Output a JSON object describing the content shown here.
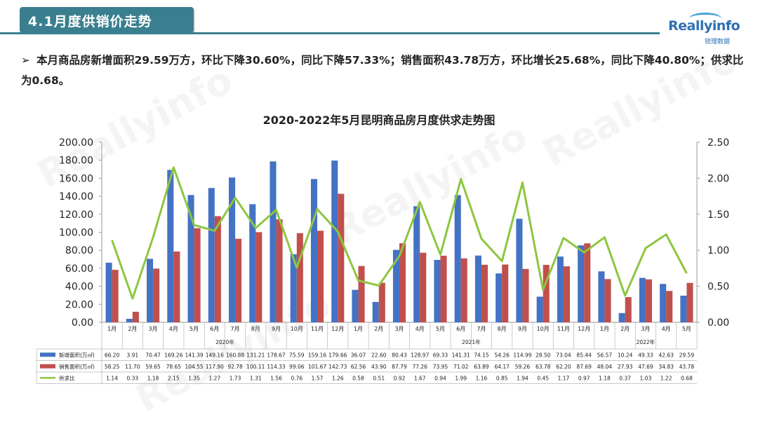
{
  "header": {
    "section_title": "4.1月度供销价走势",
    "logo_text": "Reallyinfo",
    "logo_sub": "锐理数据"
  },
  "summary": {
    "bullet_icon": "arrow-right-icon",
    "text": "本月商品房新增面积29.59万方，环比下降30.60%，同比下降57.33%；销售面积43.78万方，环比增长25.68%，同比下降40.80%；供求比为0.68。"
  },
  "colors": {
    "supply": "#4472c4",
    "sales": "#c0504d",
    "ratio": "#8dc63f",
    "accent": "#3a7f8f"
  },
  "chart_data": {
    "type": "bar",
    "title": "2020-2022年5月昆明商品房月度供求走势图",
    "categories": [
      "1月",
      "2月",
      "3月",
      "4月",
      "5月",
      "6月",
      "7月",
      "8月",
      "9月",
      "10月",
      "11月",
      "12月",
      "1月",
      "2月",
      "3月",
      "4月",
      "5月",
      "6月",
      "7月",
      "8月",
      "9月",
      "10月",
      "11月",
      "12月",
      "1月",
      "2月",
      "3月",
      "4月",
      "5月"
    ],
    "year_groups": [
      {
        "label": "2020年",
        "count": 12
      },
      {
        "label": "2021年",
        "count": 12
      },
      {
        "label": "2022年",
        "count": 5
      }
    ],
    "series": [
      {
        "name": "新增面积(万㎡)",
        "type": "bar",
        "axis": "left",
        "values": [
          66.2,
          3.91,
          70.47,
          169.26,
          141.39,
          149.16,
          160.88,
          131.21,
          178.67,
          75.59,
          159.16,
          179.66,
          36.07,
          22.6,
          80.43,
          128.97,
          69.33,
          141.31,
          74.15,
          54.26,
          114.99,
          28.5,
          73.04,
          85.44,
          56.57,
          10.24,
          49.33,
          42.63,
          29.59
        ],
        "labels": [
          "66.20",
          "3.91",
          "70.47",
          "169.26",
          "141.39",
          "149.16",
          "160.88",
          "131.21",
          "178.67",
          "75.59",
          "159.16",
          "179.66",
          "36.07",
          "22.60",
          "80.43",
          "128.97",
          "69.33",
          "141.31",
          "74.15",
          "54.26",
          "114.99",
          "28.50",
          "73.04",
          "85.44",
          "56.57",
          "10.24",
          "49.33",
          "42.63",
          "29.59"
        ]
      },
      {
        "name": "销售面积(万㎡)",
        "type": "bar",
        "axis": "left",
        "values": [
          58.25,
          11.7,
          59.65,
          78.65,
          104.55,
          117.9,
          92.78,
          100.11,
          114.33,
          99.06,
          101.67,
          142.73,
          62.56,
          43.9,
          87.79,
          77.26,
          73.95,
          71.02,
          63.89,
          64.17,
          59.26,
          63.78,
          62.2,
          87.69,
          48.04,
          27.93,
          47.69,
          34.83,
          43.78
        ],
        "labels": [
          "58.25",
          "11.70",
          "59.65",
          "78.65",
          "104.55",
          "117.90",
          "92.78",
          "100.11",
          "114.33",
          "99.06",
          "101.67",
          "142.73",
          "62.56",
          "43.90",
          "87.79",
          "77.26",
          "73.95",
          "71.02",
          "63.89",
          "64.17",
          "59.26",
          "63.78",
          "62.20",
          "87.69",
          "48.04",
          "27.93",
          "47.69",
          "34.83",
          "43.78"
        ]
      },
      {
        "name": "供求比",
        "type": "line",
        "axis": "right",
        "values": [
          1.14,
          0.33,
          1.18,
          2.15,
          1.35,
          1.27,
          1.73,
          1.31,
          1.56,
          0.76,
          1.57,
          1.26,
          0.58,
          0.51,
          0.92,
          1.67,
          0.94,
          1.99,
          1.16,
          0.85,
          1.94,
          0.45,
          1.17,
          0.97,
          1.18,
          0.37,
          1.03,
          1.22,
          0.68
        ],
        "labels": [
          "1.14",
          "0.33",
          "1.18",
          "2.15",
          "1.35",
          "1.27",
          "1.73",
          "1.31",
          "1.56",
          "0.76",
          "1.57",
          "1.26",
          "0.58",
          "0.51",
          "0.92",
          "1.67",
          "0.94",
          "1.99",
          "1.16",
          "0.85",
          "1.94",
          "0.45",
          "1.17",
          "0.97",
          "1.18",
          "0.37",
          "1.03",
          "1.22",
          "0.68"
        ]
      }
    ],
    "y_left": {
      "min": 0,
      "max": 200,
      "step": 20,
      "tick_labels": [
        "0.00",
        "20.00",
        "40.00",
        "60.00",
        "80.00",
        "100.00",
        "120.00",
        "140.00",
        "160.00",
        "180.00",
        "200.00"
      ]
    },
    "y_right": {
      "min": 0,
      "max": 2.5,
      "step": 0.5,
      "tick_labels": [
        "0.00",
        "0.50",
        "1.00",
        "1.50",
        "2.00",
        "2.50"
      ]
    },
    "grid": false,
    "legend": "data-table-below"
  }
}
